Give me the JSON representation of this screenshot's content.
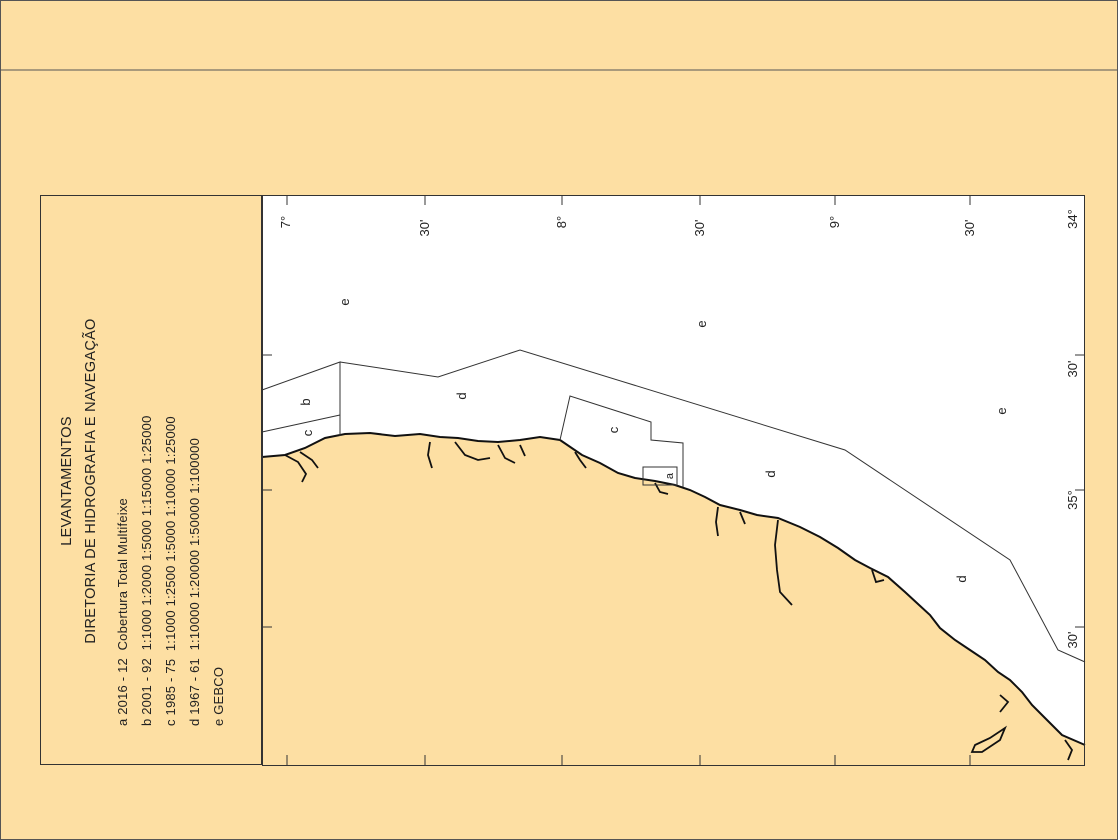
{
  "legend": {
    "title_1": "LEVANTAMENTOS",
    "title_2": "DIRETORIA DE HIDROGRAFIA E NAVEGAÇÃO",
    "rows": [
      "a 2016 - 12  Cobertura Total Multifeixe",
      "b 2001 - 92  1:1000 1:2000 1:5000 1:15000 1:25000",
      "c 1985 - 75  1:1000 1:2500 1:5000 1:10000 1:25000",
      "d 1967 - 61  1:10000 1:20000 1:50000 1:100000",
      "e GEBCO"
    ]
  },
  "map": {
    "colors": {
      "land": "#fddfa3",
      "sea": "#ffffff",
      "coast": "#111111",
      "line": "#333333"
    },
    "lat_labels": [
      "7°",
      "30'",
      "8°",
      "30'",
      "9°",
      "30'",
      "34°"
    ],
    "lon_labels": [
      "30'",
      "35°",
      "30'"
    ],
    "area_labels": {
      "a": "a",
      "b": "b",
      "c_west": "c",
      "c_east": "c",
      "d_1": "d",
      "d_2": "d",
      "d_3": "d",
      "e_1": "e",
      "e_2": "e",
      "e_3": "e"
    }
  }
}
